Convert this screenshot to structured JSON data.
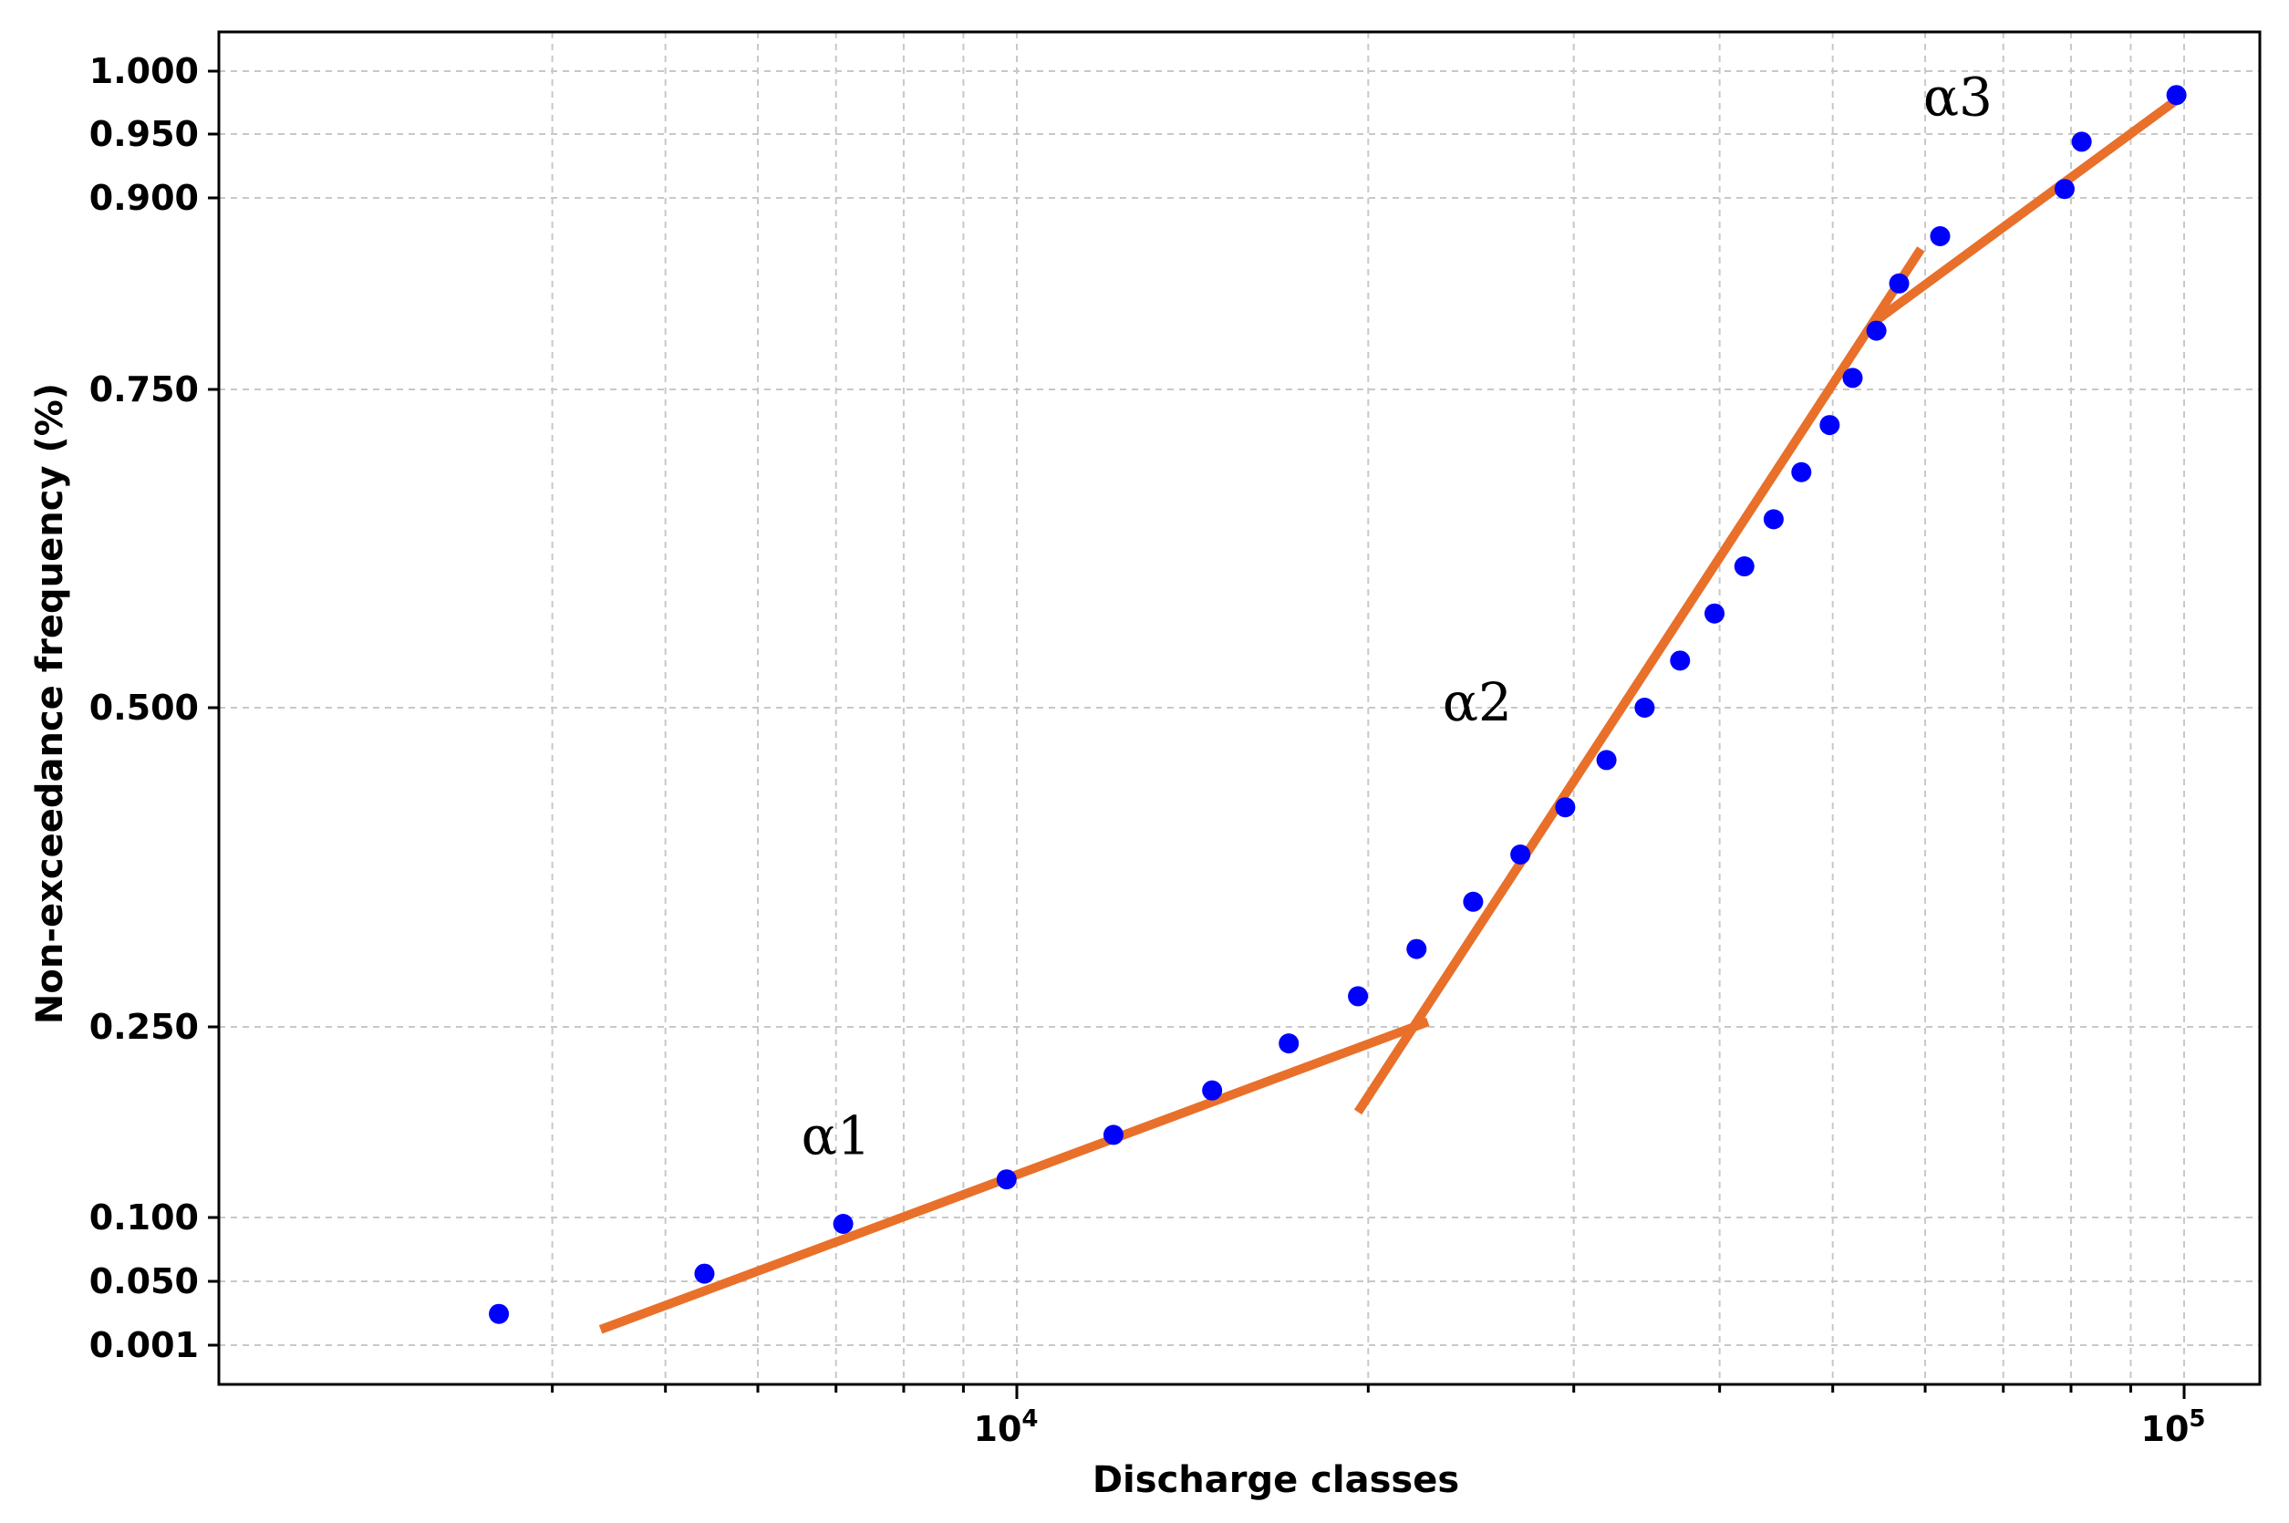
{
  "chart_data": {
    "type": "scatter",
    "xlabel": "Discharge classes",
    "ylabel": "Non-exceedance frequency (%)",
    "x_scale": "log",
    "xlim": [
      3200,
      120000
    ],
    "x_ticks": [
      {
        "value": 10000,
        "label": "10",
        "exp": "4"
      },
      {
        "value": 100000,
        "label": "10",
        "exp": "5"
      }
    ],
    "y_ticks": [
      "0.001",
      "0.050",
      "0.100",
      "0.250",
      "0.500",
      "0.750",
      "0.900",
      "0.950",
      "1.000"
    ],
    "grid": true,
    "legend": "none",
    "series": [
      {
        "kind": "points",
        "color": "#0000FF",
        "points": [
          {
            "x": 3600,
            "y": 0.025
          },
          {
            "x": 5400,
            "y": 0.056
          },
          {
            "x": 7100,
            "y": 0.095
          },
          {
            "x": 9800,
            "y": 0.13
          },
          {
            "x": 12100,
            "y": 0.165
          },
          {
            "x": 14700,
            "y": 0.2
          },
          {
            "x": 17100,
            "y": 0.237
          },
          {
            "x": 19600,
            "y": 0.274
          },
          {
            "x": 22000,
            "y": 0.311
          },
          {
            "x": 24600,
            "y": 0.348
          },
          {
            "x": 27000,
            "y": 0.385
          },
          {
            "x": 29500,
            "y": 0.422
          },
          {
            "x": 32000,
            "y": 0.459
          },
          {
            "x": 34500,
            "y": 0.5
          },
          {
            "x": 37000,
            "y": 0.537
          },
          {
            "x": 39600,
            "y": 0.574
          },
          {
            "x": 42000,
            "y": 0.611
          },
          {
            "x": 44500,
            "y": 0.648
          },
          {
            "x": 47000,
            "y": 0.685
          },
          {
            "x": 49700,
            "y": 0.722
          },
          {
            "x": 52000,
            "y": 0.759
          },
          {
            "x": 54500,
            "y": 0.796
          },
          {
            "x": 57000,
            "y": 0.833
          },
          {
            "x": 61800,
            "y": 0.87
          },
          {
            "x": 79000,
            "y": 0.907
          },
          {
            "x": 81700,
            "y": 0.944
          },
          {
            "x": 98500,
            "y": 0.981
          }
        ]
      },
      {
        "kind": "fit-lines",
        "color": "#E8702A",
        "segments": [
          {
            "name": "α1",
            "x1": 4400,
            "y1": 0.013,
            "x2": 22500,
            "y2": 0.254
          },
          {
            "name": "α2",
            "x1": 19600,
            "y1": 0.183,
            "x2": 59500,
            "y2": 0.86
          },
          {
            "name": "α3",
            "x1": 54500,
            "y1": 0.804,
            "x2": 99500,
            "y2": 0.98
          }
        ]
      }
    ],
    "annotations": [
      {
        "text": "α1",
        "x": 7000,
        "y": 0.15
      },
      {
        "text": "α2",
        "x": 24800,
        "y": 0.49
      },
      {
        "text": "α3",
        "x": 64000,
        "y": 0.965
      }
    ]
  }
}
